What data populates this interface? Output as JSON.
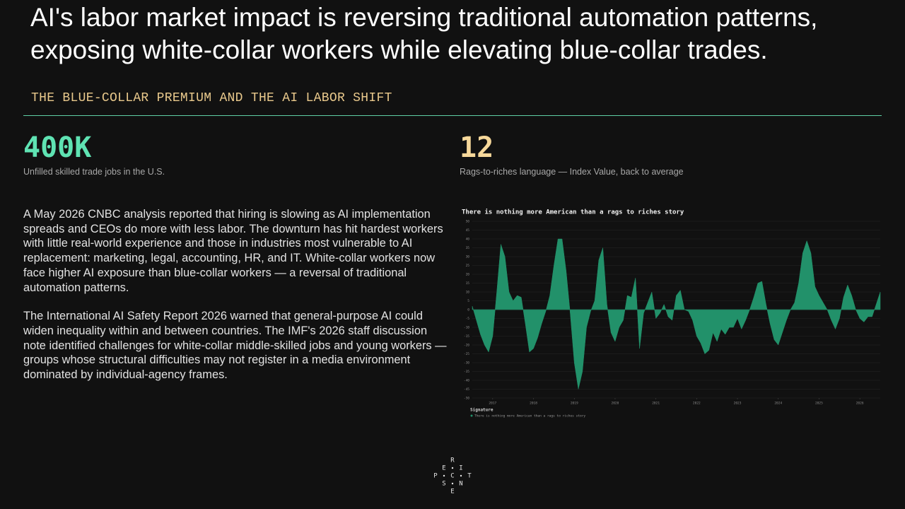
{
  "title": "AI's labor market impact is reversing traditional automation patterns, exposing white-collar workers while elevating blue-collar trades.",
  "subtitle": "THE BLUE-COLLAR PREMIUM AND THE AI LABOR SHIFT",
  "stats": [
    {
      "value": "400K",
      "label": "Unfilled skilled trade jobs in the U.S."
    },
    {
      "value": "12",
      "label": "Rags-to-riches language — Index Value, back to average"
    }
  ],
  "paragraphs": [
    "A May 2026 CNBC analysis reported that hiring is slowing as AI implementation spreads and CEOs do more with less labor. The downturn has hit hardest workers with little real-world experience and those in industries most vulnerable to AI replacement: marketing, legal, accounting, HR, and IT. White-collar workers now face higher AI exposure than blue-collar workers — a reversal of traditional automation patterns.",
    "The International AI Safety Report 2026 warned that general-purpose AI could widen inequality within and between countries. The IMF's 2026 staff discussion note identified challenges for white-collar middle-skilled jobs and young workers — groups whose structural difficulties may not register in a media environment dominated by individual-agency frames."
  ],
  "logo": [
    "R",
    "E",
    "I",
    "P",
    "C",
    "T",
    "S",
    "N",
    "E"
  ],
  "chart_data": {
    "type": "area",
    "title": "There is nothing more American than a rags to riches story",
    "legend_title": "Signature",
    "x": [
      2016.5,
      2016.6,
      2016.7,
      2016.8,
      2016.9,
      2017.0,
      2017.1,
      2017.2,
      2017.3,
      2017.4,
      2017.5,
      2017.6,
      2017.7,
      2017.8,
      2017.9,
      2018.0,
      2018.1,
      2018.2,
      2018.3,
      2018.4,
      2018.5,
      2018.6,
      2018.7,
      2018.8,
      2018.9,
      2019.0,
      2019.1,
      2019.2,
      2019.3,
      2019.4,
      2019.5,
      2019.6,
      2019.7,
      2019.8,
      2019.9,
      2020.0,
      2020.1,
      2020.2,
      2020.3,
      2020.4,
      2020.5,
      2020.6,
      2020.7,
      2020.8,
      2020.9,
      2021.0,
      2021.1,
      2021.2,
      2021.3,
      2021.4,
      2021.5,
      2021.6,
      2021.7,
      2021.8,
      2021.9,
      2022.0,
      2022.1,
      2022.2,
      2022.3,
      2022.4,
      2022.5,
      2022.6,
      2022.7,
      2022.8,
      2022.9,
      2023.0,
      2023.1,
      2023.2,
      2023.3,
      2023.4,
      2023.5,
      2023.6,
      2023.7,
      2023.8,
      2023.9,
      2024.0,
      2024.1,
      2024.2,
      2024.3,
      2024.4,
      2024.5,
      2024.6,
      2024.7,
      2024.8,
      2024.9,
      2025.0,
      2025.1,
      2025.2,
      2025.3,
      2025.4,
      2025.5,
      2025.6,
      2025.7,
      2025.8,
      2025.9,
      2026.0,
      2026.1,
      2026.2,
      2026.3,
      2026.4,
      2026.5
    ],
    "series": [
      {
        "name": "There is nothing more American than a rags to riches story",
        "color": "#22916a",
        "values": [
          2,
          -6,
          -14,
          -20,
          -24,
          -15,
          10,
          37,
          30,
          10,
          5,
          8,
          7,
          -8,
          -24,
          -22,
          -16,
          -8,
          -1,
          8,
          25,
          40,
          40,
          22,
          -2,
          -30,
          -45,
          -35,
          -10,
          -1,
          5,
          28,
          35,
          3,
          -13,
          -18,
          -10,
          -6,
          8,
          7,
          18,
          -22,
          -2,
          4,
          10,
          -5,
          -2,
          3,
          -4,
          -6,
          8,
          11,
          0,
          -1,
          -6,
          -15,
          -19,
          -25,
          -23,
          -13,
          -18,
          -11,
          -14,
          -10,
          -10,
          -5,
          -11,
          -6,
          0,
          7,
          15,
          16,
          3,
          -8,
          -17,
          -20,
          -13,
          -6,
          0,
          4,
          15,
          32,
          39,
          32,
          13,
          8,
          4,
          0,
          -6,
          -11,
          -5,
          7,
          14,
          8,
          0,
          -5,
          -7,
          -4,
          -4,
          3,
          10
        ]
      }
    ],
    "xlim": [
      2016.5,
      2026.5
    ],
    "xticks": [
      2017,
      2018,
      2019,
      2020,
      2021,
      2022,
      2023,
      2024,
      2025,
      2026
    ],
    "ylim": [
      -50,
      50
    ],
    "yticks": [
      50,
      45,
      40,
      35,
      30,
      25,
      20,
      15,
      10,
      5,
      0,
      -5,
      -10,
      -15,
      -20,
      -25,
      -30,
      -35,
      -40,
      -45,
      -50
    ],
    "grid": true
  }
}
